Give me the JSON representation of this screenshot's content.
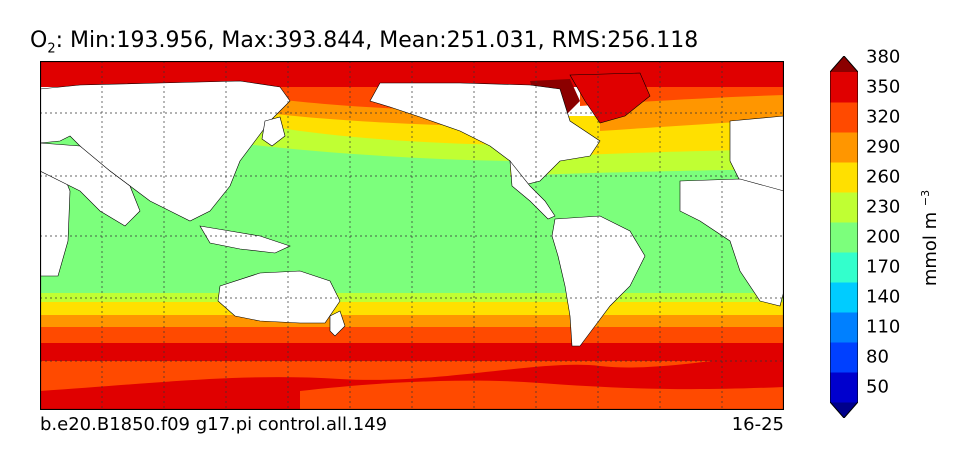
{
  "title": {
    "variable": "O",
    "subscript": "2",
    "stats": ": Min:193.956, Max:393.844, Mean:251.031, RMS:256.118"
  },
  "caption": {
    "case_name": "b.e20.B1850.f09 g17.pi control.all.149",
    "years": "16-25"
  },
  "colorbar": {
    "unit_base": "mmol m",
    "unit_exp": "−3",
    "ticks": [
      "50",
      "80",
      "110",
      "140",
      "170",
      "200",
      "230",
      "260",
      "290",
      "320",
      "350",
      "380"
    ],
    "colors": [
      "#00008b",
      "#0000cd",
      "#0040ff",
      "#0080ff",
      "#00ccff",
      "#33ffcc",
      "#7cff7c",
      "#c0ff33",
      "#ffe000",
      "#ff9600",
      "#ff4a00",
      "#e00000",
      "#8b0000"
    ]
  },
  "map": {
    "land_color": "#ffffff",
    "ocean_bands_south_to_north": [
      "#ff4a00",
      "#e00000",
      "#ff4a00",
      "#ff9600",
      "#ffe000",
      "#c0ff33",
      "#7cff7c"
    ],
    "north_pacific_bands": [
      "#c0ff33",
      "#ffe000",
      "#ff9600",
      "#ff4a00"
    ],
    "arctic_color": "#e00000",
    "grid": "dotted"
  }
}
